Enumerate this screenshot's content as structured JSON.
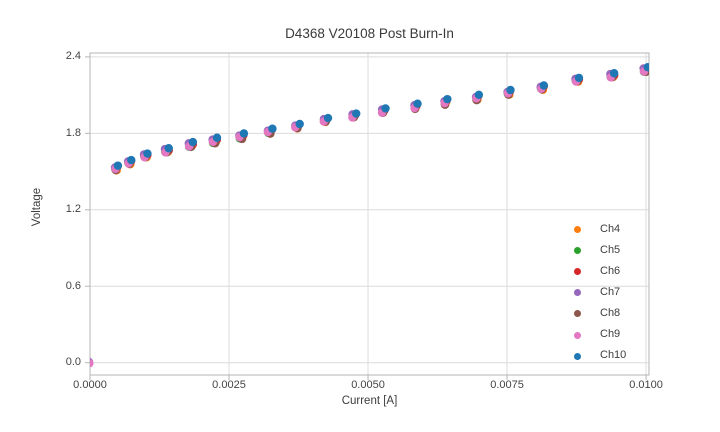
{
  "chart_data": {
    "type": "scatter",
    "title": "D4368 V20108 Post Burn-In",
    "xlabel": "Current [A]",
    "ylabel": "Voltage",
    "grid": true,
    "legend_position": "lower right inside plot, no frame",
    "x_range": [
      0,
      0.010053
    ],
    "y_range": [
      -0.0965,
      2.4305
    ],
    "x_ticks": [
      0.0,
      0.0025,
      0.005,
      0.0075,
      0.01
    ],
    "x_tick_labels": [
      "0.0000",
      "0.0025",
      "0.0050",
      "0.0075",
      "0.0100"
    ],
    "y_ticks": [
      0.0,
      0.6,
      1.2,
      1.8,
      2.4
    ],
    "y_tick_labels": [
      "0.0",
      "0.6",
      "1.2",
      "1.8",
      "2.4"
    ],
    "x": [
      0.00047,
      0.00071,
      0.001,
      0.00138,
      0.00181,
      0.00224,
      0.00272,
      0.00323,
      0.00372,
      0.00423,
      0.00474,
      0.00527,
      0.00585,
      0.00639,
      0.00696,
      0.00753,
      0.00813,
      0.00876,
      0.00939,
      0.00999
    ],
    "base_y": [
      1.527,
      1.573,
      1.624,
      1.663,
      1.708,
      1.74,
      1.775,
      1.815,
      1.855,
      1.903,
      1.937,
      1.974,
      2.008,
      2.043,
      2.079,
      2.12,
      2.158,
      2.218,
      2.252,
      2.296
    ],
    "origin_point": {
      "x": 0.0,
      "y": 0.0,
      "channels": [
        "Ch7",
        "Ch9"
      ]
    },
    "series": [
      {
        "name": "Ch4",
        "color": "#ff7f0e",
        "y": [
          1.527,
          1.573,
          1.624,
          1.663,
          1.708,
          1.74,
          1.775,
          1.815,
          1.855,
          1.903,
          1.937,
          1.974,
          2.008,
          2.043,
          2.079,
          2.12,
          2.158,
          2.218,
          2.252,
          2.296
        ]
      },
      {
        "name": "Ch5",
        "color": "#2ca02c",
        "y": [
          1.527,
          1.573,
          1.624,
          1.663,
          1.708,
          1.74,
          1.775,
          1.815,
          1.855,
          1.903,
          1.937,
          1.974,
          2.008,
          2.043,
          2.079,
          2.12,
          2.158,
          2.218,
          2.252,
          2.296
        ]
      },
      {
        "name": "Ch6",
        "color": "#d62728",
        "y": [
          1.527,
          1.573,
          1.624,
          1.663,
          1.708,
          1.74,
          1.775,
          1.815,
          1.855,
          1.903,
          1.937,
          1.974,
          2.008,
          2.043,
          2.079,
          2.12,
          2.158,
          2.218,
          2.252,
          2.296
        ]
      },
      {
        "name": "Ch7",
        "color": "#9467bd",
        "y": [
          1.527,
          1.573,
          1.624,
          1.663,
          1.708,
          1.74,
          1.775,
          1.815,
          1.855,
          1.903,
          1.937,
          1.974,
          2.008,
          2.043,
          2.079,
          2.12,
          2.158,
          2.218,
          2.252,
          2.296
        ]
      },
      {
        "name": "Ch8",
        "color": "#8c564b",
        "y": [
          1.527,
          1.573,
          1.624,
          1.663,
          1.708,
          1.74,
          1.775,
          1.815,
          1.855,
          1.903,
          1.937,
          1.974,
          2.008,
          2.043,
          2.079,
          2.12,
          2.158,
          2.218,
          2.252,
          2.296
        ]
      },
      {
        "name": "Ch9",
        "color": "#e377c2",
        "y": [
          1.527,
          1.573,
          1.624,
          1.663,
          1.708,
          1.74,
          1.775,
          1.815,
          1.855,
          1.903,
          1.937,
          1.974,
          2.008,
          2.043,
          2.079,
          2.12,
          2.158,
          2.218,
          2.252,
          2.296
        ]
      },
      {
        "name": "Ch10",
        "color": "#1f77b4",
        "y": [
          1.527,
          1.573,
          1.624,
          1.663,
          1.708,
          1.74,
          1.775,
          1.815,
          1.855,
          1.903,
          1.937,
          1.974,
          2.008,
          2.043,
          2.079,
          2.12,
          2.158,
          2.218,
          2.252,
          2.296
        ]
      }
    ],
    "style": {
      "grid_color": "#dcdcdc",
      "spine_color": "#b5b5b5",
      "tick_color": "#b5b5b5",
      "marker_diameter_px": 8.4
    }
  }
}
